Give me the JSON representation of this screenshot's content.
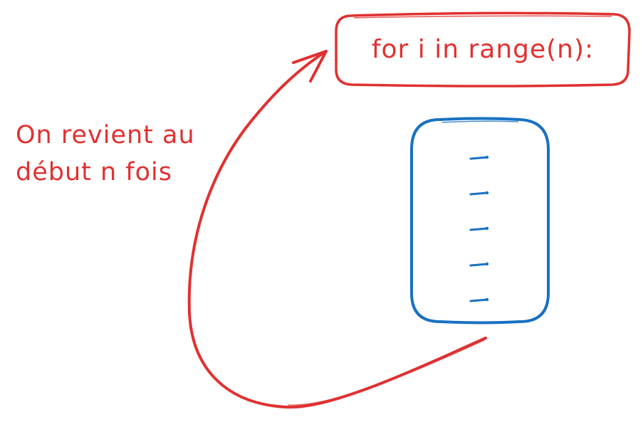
{
  "diagram": {
    "header": {
      "code": "for i in range(n):",
      "color": "#e03131"
    },
    "annotation": {
      "line1": "On revient au",
      "line2": "début n fois",
      "color": "#e03131"
    },
    "body_block": {
      "color": "#1971c2",
      "line_count": 5
    },
    "arrow": {
      "color": "#e03131",
      "meaning": "loop-back-arrow"
    }
  }
}
